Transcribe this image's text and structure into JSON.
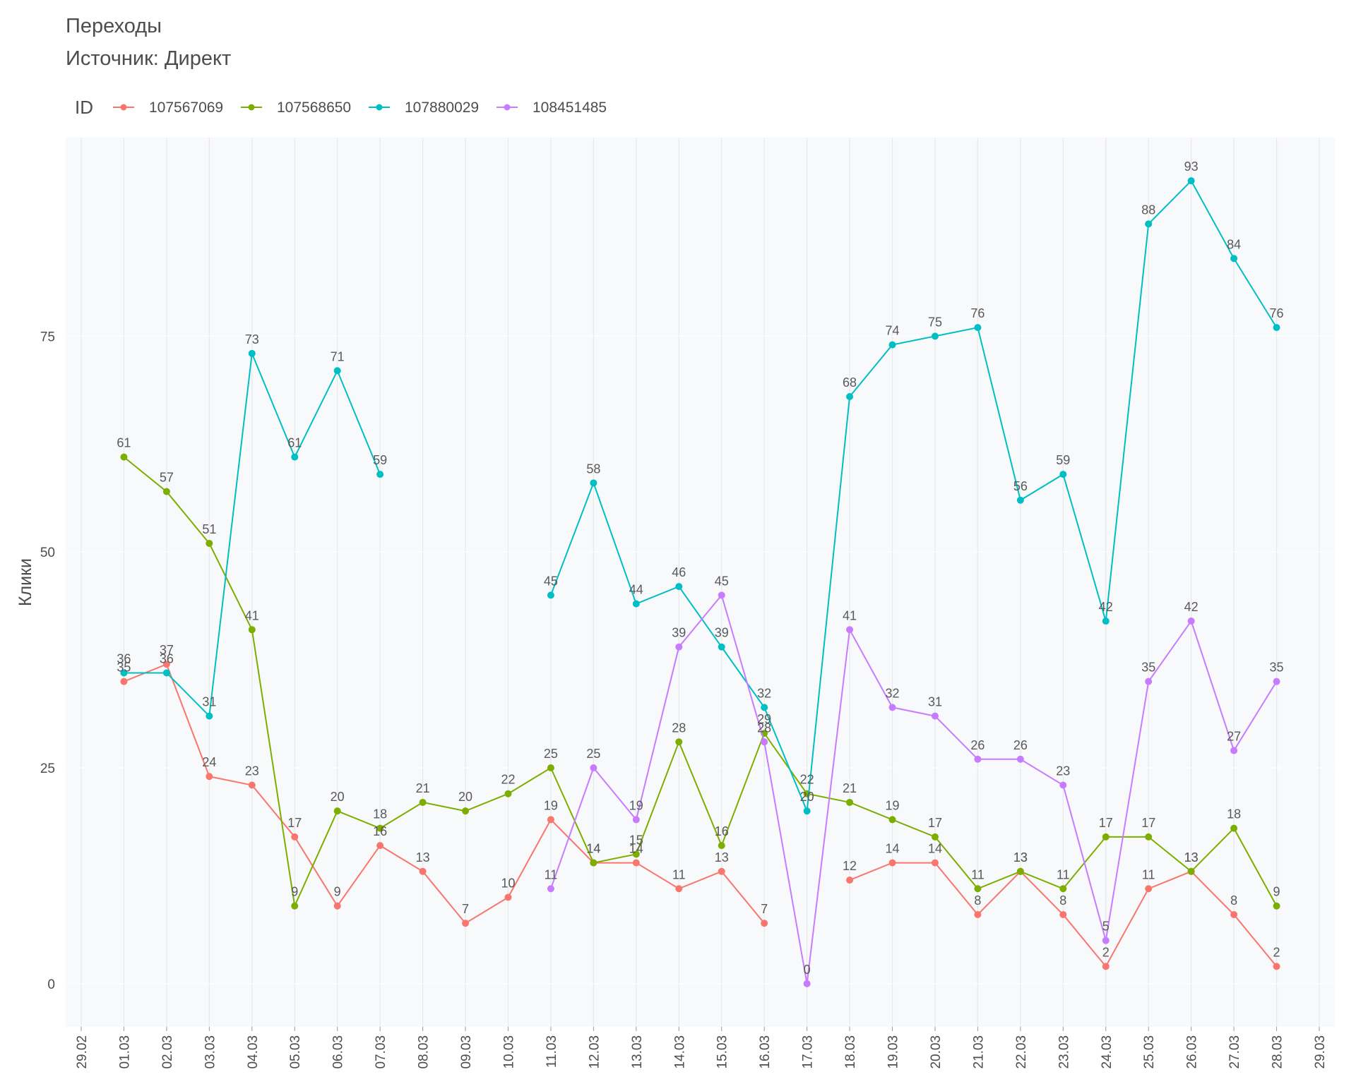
{
  "chart_data": {
    "type": "line",
    "title": "Переходы",
    "subtitle": "Источник: Директ",
    "xlabel": "",
    "ylabel": "Клики",
    "legend_title": "ID",
    "legend_position": "top-left",
    "grid": true,
    "ylim": [
      -5,
      98
    ],
    "yticks": [
      0,
      25,
      50,
      75
    ],
    "categories": [
      "29.02",
      "01.03",
      "02.03",
      "03.03",
      "04.03",
      "05.03",
      "06.03",
      "07.03",
      "08.03",
      "09.03",
      "10.03",
      "11.03",
      "12.03",
      "13.03",
      "14.03",
      "15.03",
      "16.03",
      "17.03",
      "18.03",
      "19.03",
      "20.03",
      "21.03",
      "22.03",
      "23.03",
      "24.03",
      "25.03",
      "26.03",
      "27.03",
      "28.03",
      "29.03"
    ],
    "series": [
      {
        "name": "107567069",
        "color": "#F8766D",
        "values": [
          null,
          35,
          37,
          24,
          23,
          17,
          9,
          16,
          13,
          7,
          10,
          19,
          14,
          14,
          11,
          13,
          7,
          null,
          12,
          14,
          14,
          8,
          13,
          8,
          2,
          11,
          13,
          8,
          2,
          null
        ]
      },
      {
        "name": "107568650",
        "color": "#7CAE00",
        "values": [
          null,
          61,
          57,
          51,
          41,
          9,
          20,
          18,
          21,
          20,
          22,
          25,
          14,
          15,
          28,
          16,
          29,
          22,
          21,
          19,
          17,
          11,
          13,
          11,
          17,
          17,
          13,
          18,
          9,
          null
        ]
      },
      {
        "name": "107880029",
        "color": "#00BFC4",
        "values": [
          null,
          36,
          36,
          31,
          73,
          61,
          71,
          59,
          null,
          null,
          null,
          45,
          58,
          44,
          46,
          39,
          32,
          20,
          68,
          74,
          75,
          76,
          56,
          59,
          42,
          88,
          93,
          84,
          76,
          null
        ]
      },
      {
        "name": "108451485",
        "color": "#C77CFF",
        "values": [
          null,
          null,
          null,
          null,
          null,
          null,
          null,
          null,
          null,
          null,
          null,
          11,
          25,
          19,
          39,
          45,
          28,
          0,
          41,
          32,
          31,
          26,
          26,
          23,
          5,
          35,
          42,
          27,
          35,
          null
        ]
      }
    ]
  }
}
